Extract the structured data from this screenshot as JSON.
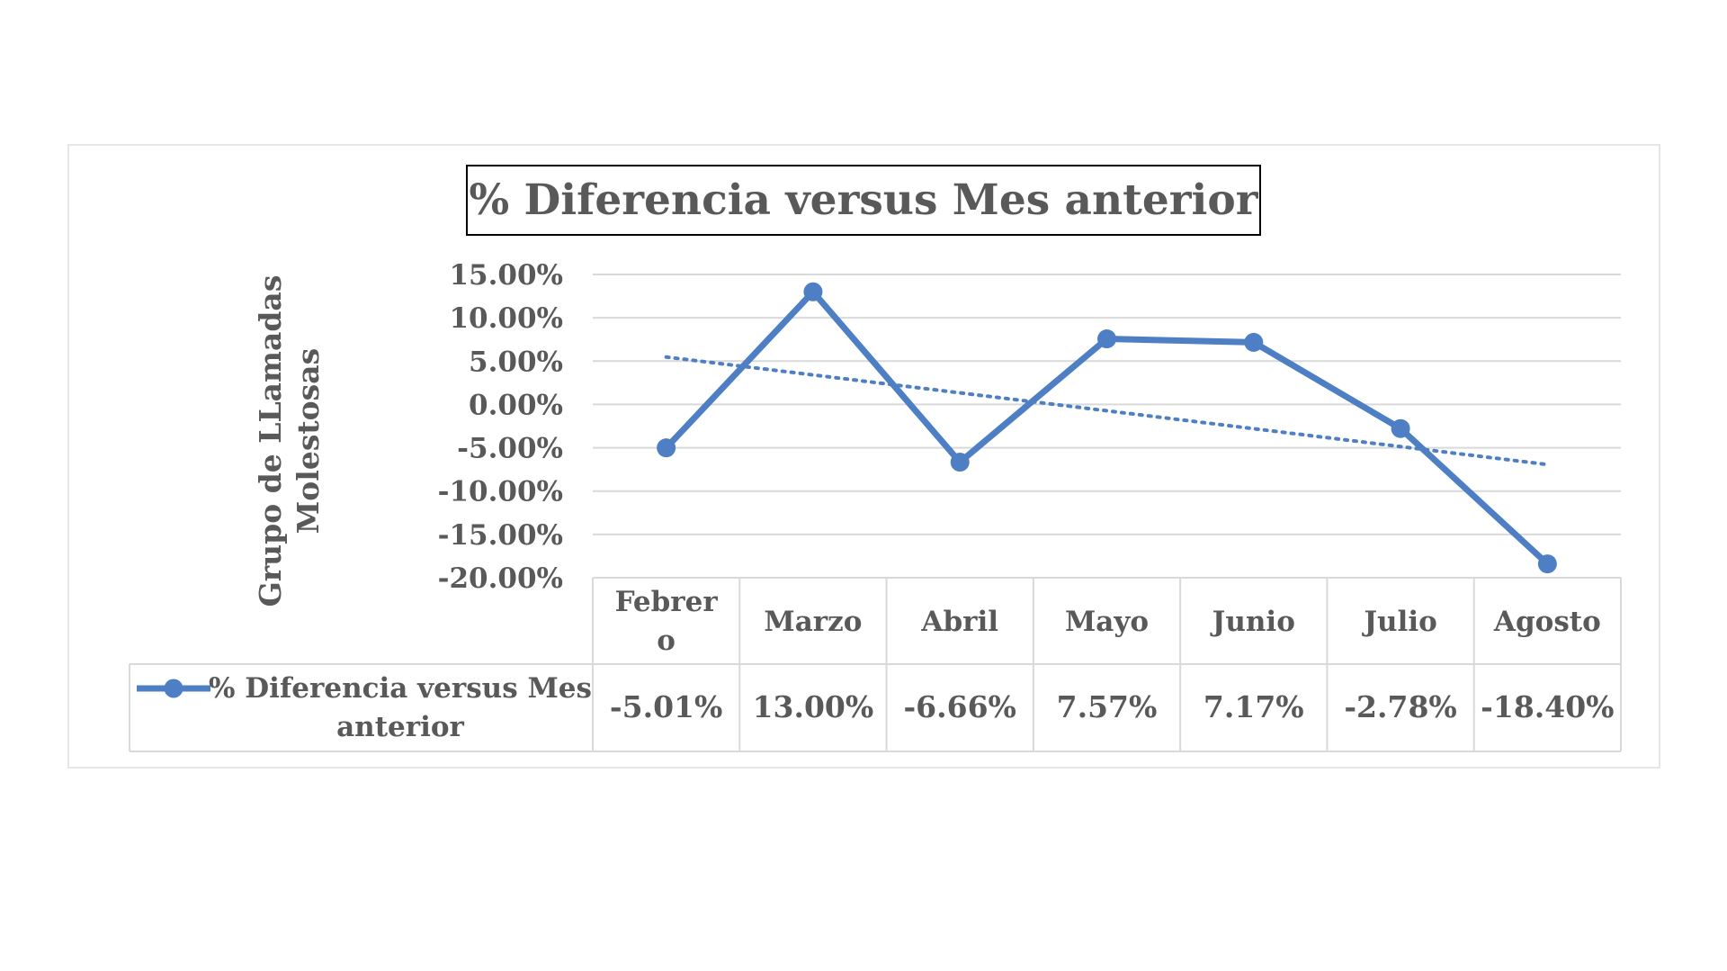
{
  "chart_data": {
    "type": "line",
    "title": "% Diferencia versus Mes anterior",
    "ylabel": "Grupo de LLamadas Molestosas",
    "xlabel": "",
    "categories": [
      "Febrero",
      "Marzo",
      "Abril",
      "Mayo",
      "Junio",
      "Julio",
      "Agosto"
    ],
    "category_display": [
      "Febrer\no",
      "Marzo",
      "Abril",
      "Mayo",
      "Junio",
      "Julio",
      "Agosto"
    ],
    "series": [
      {
        "name": "% Diferencia versus Mes anterior",
        "values": [
          -5.01,
          13.0,
          -6.66,
          7.57,
          7.17,
          -2.78,
          -18.4
        ],
        "labels": [
          "-5.01%",
          "13.00%",
          "-6.66%",
          "7.57%",
          "7.17%",
          "-2.78%",
          "-18.40%"
        ],
        "color": "#4e7fc4",
        "marker": "circle"
      }
    ],
    "trendline": {
      "type": "linear",
      "style": "dotted",
      "color": "#4e7fc4"
    },
    "ylim": [
      -20,
      15
    ],
    "yticks": [
      15,
      10,
      5,
      0,
      -5,
      -10,
      -15,
      -20
    ],
    "ytick_labels": [
      "15.00%",
      "10.00%",
      "5.00%",
      "0.00%",
      "-5.00%",
      "-10.00%",
      "-15.00%",
      "-20.00%"
    ],
    "grid": true,
    "legend_placement": "data-table",
    "data_table": true
  },
  "colors": {
    "series": "#4e7fc4",
    "text": "#595959",
    "grid": "#d9d9d9"
  }
}
